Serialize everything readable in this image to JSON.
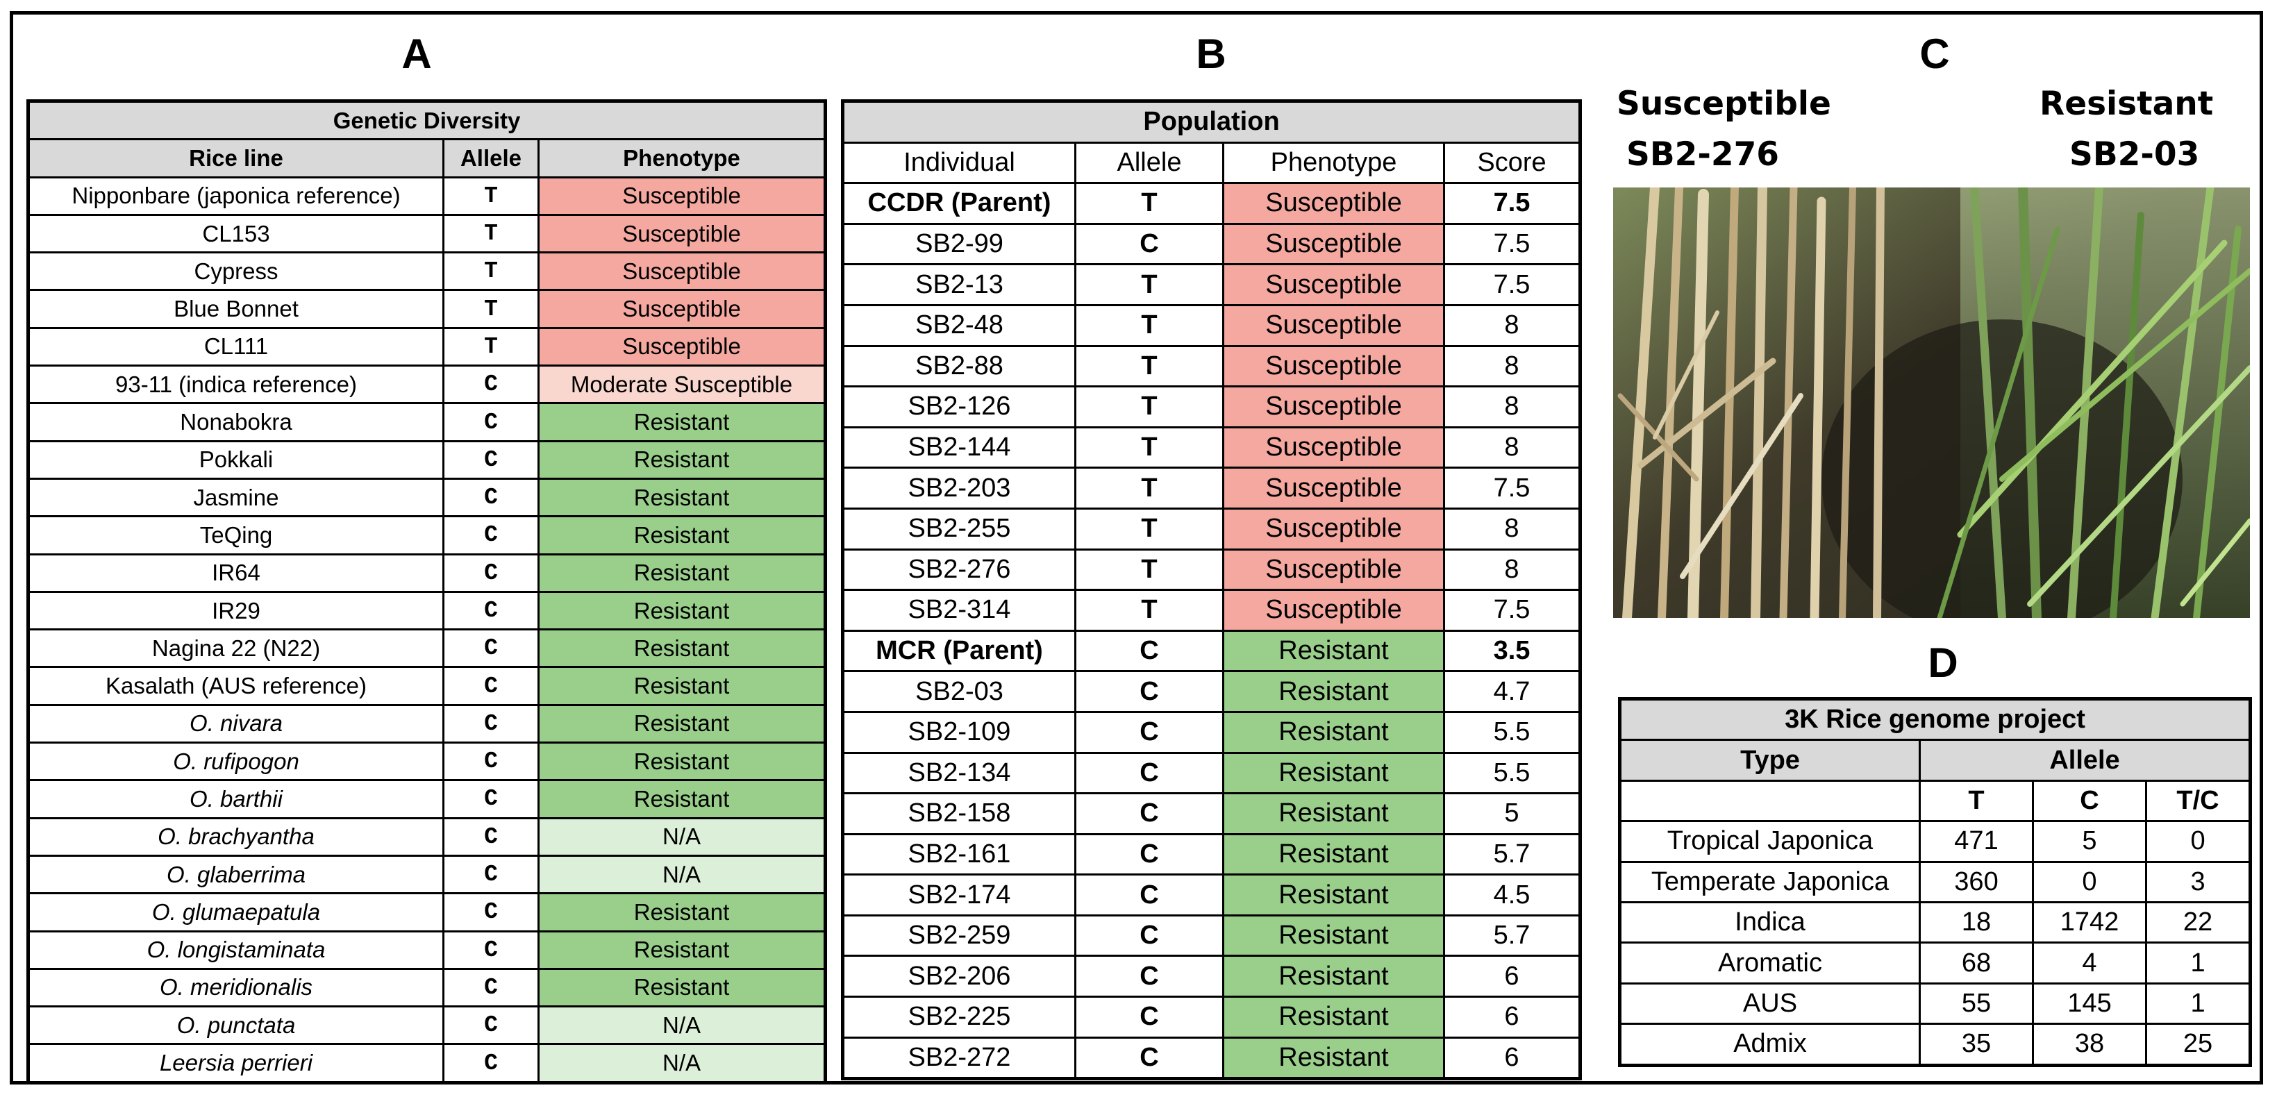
{
  "panels": {
    "a": "A",
    "b": "B",
    "c": "C",
    "d": "D"
  },
  "tableA": {
    "title": "Genetic Diversity",
    "headers": [
      "Rice line",
      "Allele",
      "Phenotype"
    ],
    "rows": [
      {
        "line": "Nipponbare (japonica reference)",
        "allele": "T",
        "phenotype": "Susceptible"
      },
      {
        "line": "CL153",
        "allele": "T",
        "phenotype": "Susceptible"
      },
      {
        "line": "Cypress",
        "allele": "T",
        "phenotype": "Susceptible"
      },
      {
        "line": "Blue Bonnet",
        "allele": "T",
        "phenotype": "Susceptible"
      },
      {
        "line": "CL111",
        "allele": "T",
        "phenotype": "Susceptible"
      },
      {
        "line": "93-11 (indica reference)",
        "allele": "C",
        "phenotype": "Moderate Susceptible"
      },
      {
        "line": "Nonabokra",
        "allele": "C",
        "phenotype": "Resistant"
      },
      {
        "line": "Pokkali",
        "allele": "C",
        "phenotype": "Resistant"
      },
      {
        "line": "Jasmine",
        "allele": "C",
        "phenotype": "Resistant"
      },
      {
        "line": "TeQing",
        "allele": "C",
        "phenotype": "Resistant"
      },
      {
        "line": "IR64",
        "allele": "C",
        "phenotype": "Resistant"
      },
      {
        "line": "IR29",
        "allele": "C",
        "phenotype": "Resistant"
      },
      {
        "line": "Nagina 22 (N22)",
        "allele": "C",
        "phenotype": "Resistant"
      },
      {
        "line": "Kasalath (AUS reference)",
        "allele": "C",
        "phenotype": "Resistant"
      },
      {
        "line": "O. nivara",
        "allele": "C",
        "phenotype": "Resistant"
      },
      {
        "line": "O. rufipogon",
        "allele": "C",
        "phenotype": "Resistant"
      },
      {
        "line": "O. barthii",
        "allele": "C",
        "phenotype": "Resistant"
      },
      {
        "line": "O. brachyantha",
        "allele": "C",
        "phenotype": "N/A"
      },
      {
        "line": "O. glaberrima",
        "allele": "C",
        "phenotype": "N/A"
      },
      {
        "line": "O. glumaepatula",
        "allele": "C",
        "phenotype": "Resistant"
      },
      {
        "line": "O. longistaminata",
        "allele": "C",
        "phenotype": "Resistant"
      },
      {
        "line": "O. meridionalis",
        "allele": "C",
        "phenotype": "Resistant"
      },
      {
        "line": "O. punctata",
        "allele": "C",
        "phenotype": "N/A"
      },
      {
        "line": "Leersia perrieri",
        "allele": "C",
        "phenotype": "N/A"
      }
    ]
  },
  "tableB": {
    "title": "Population",
    "headers": [
      "Individual",
      "Allele",
      "Phenotype",
      "Score"
    ],
    "rows": [
      {
        "ind": "CCDR (Parent)",
        "allele": "T",
        "phenotype": "Susceptible",
        "score": "7.5"
      },
      {
        "ind": "SB2-99",
        "allele": "C",
        "phenotype": "Susceptible",
        "score": "7.5"
      },
      {
        "ind": "SB2-13",
        "allele": "T",
        "phenotype": "Susceptible",
        "score": "7.5"
      },
      {
        "ind": "SB2-48",
        "allele": "T",
        "phenotype": "Susceptible",
        "score": "8"
      },
      {
        "ind": "SB2-88",
        "allele": "T",
        "phenotype": "Susceptible",
        "score": "8"
      },
      {
        "ind": "SB2-126",
        "allele": "T",
        "phenotype": "Susceptible",
        "score": "8"
      },
      {
        "ind": "SB2-144",
        "allele": "T",
        "phenotype": "Susceptible",
        "score": "8"
      },
      {
        "ind": "SB2-203",
        "allele": "T",
        "phenotype": "Susceptible",
        "score": "7.5"
      },
      {
        "ind": "SB2-255",
        "allele": "T",
        "phenotype": "Susceptible",
        "score": "8"
      },
      {
        "ind": "SB2-276",
        "allele": "T",
        "phenotype": "Susceptible",
        "score": "8"
      },
      {
        "ind": "SB2-314",
        "allele": "T",
        "phenotype": "Susceptible",
        "score": "7.5"
      },
      {
        "ind": "MCR (Parent)",
        "allele": "C",
        "phenotype": "Resistant",
        "score": "3.5"
      },
      {
        "ind": "SB2-03",
        "allele": "C",
        "phenotype": "Resistant",
        "score": "4.7"
      },
      {
        "ind": "SB2-109",
        "allele": "C",
        "phenotype": "Resistant",
        "score": "5.5"
      },
      {
        "ind": "SB2-134",
        "allele": "C",
        "phenotype": "Resistant",
        "score": "5.5"
      },
      {
        "ind": "SB2-158",
        "allele": "C",
        "phenotype": "Resistant",
        "score": "5"
      },
      {
        "ind": "SB2-161",
        "allele": "C",
        "phenotype": "Resistant",
        "score": "5.7"
      },
      {
        "ind": "SB2-174",
        "allele": "C",
        "phenotype": "Resistant",
        "score": "4.5"
      },
      {
        "ind": "SB2-259",
        "allele": "C",
        "phenotype": "Resistant",
        "score": "5.7"
      },
      {
        "ind": "SB2-206",
        "allele": "C",
        "phenotype": "Resistant",
        "score": "6"
      },
      {
        "ind": "SB2-225",
        "allele": "C",
        "phenotype": "Resistant",
        "score": "6"
      },
      {
        "ind": "SB2-272",
        "allele": "C",
        "phenotype": "Resistant",
        "score": "6"
      }
    ]
  },
  "panelC": {
    "susceptible_label": "Susceptible",
    "susceptible_id": "SB2-276",
    "resistant_label": "Resistant",
    "resistant_id": "SB2-03"
  },
  "tableD": {
    "title": "3K Rice genome project",
    "type_header": "Type",
    "allele_header": "Allele",
    "sub_headers": [
      "T",
      "C",
      "T/C"
    ],
    "rows": [
      {
        "type": "Tropical Japonica",
        "t": "471",
        "c": "5",
        "tc": "0"
      },
      {
        "type": "Temperate Japonica",
        "t": "360",
        "c": "0",
        "tc": "3"
      },
      {
        "type": "Indica",
        "t": "18",
        "c": "1742",
        "tc": "22"
      },
      {
        "type": "Aromatic",
        "t": "68",
        "c": "4",
        "tc": "1"
      },
      {
        "type": "AUS",
        "t": "55",
        "c": "145",
        "tc": "1"
      },
      {
        "type": "Admix",
        "t": "35",
        "c": "38",
        "tc": "25"
      }
    ]
  }
}
